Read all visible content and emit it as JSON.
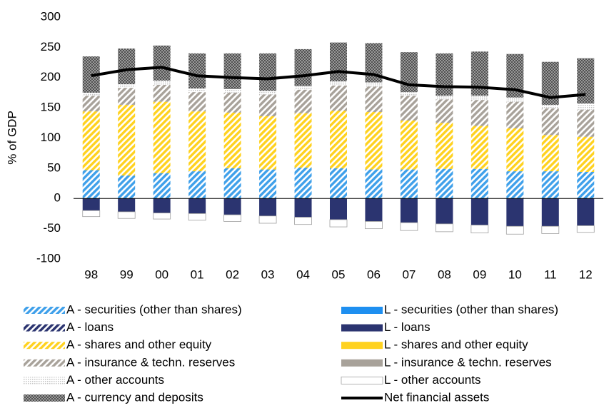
{
  "chart_data": {
    "type": "bar",
    "y_label": "% of GDP",
    "categories": [
      "98",
      "99",
      "00",
      "01",
      "02",
      "03",
      "04",
      "05",
      "06",
      "07",
      "08",
      "09",
      "10",
      "11",
      "12"
    ],
    "ylim": [
      -100,
      300
    ],
    "yticks": [
      -100,
      -50,
      0,
      50,
      100,
      150,
      200,
      250,
      300
    ],
    "series": [
      {
        "name": "A - securities (other than shares)",
        "color": "#3fa0ea",
        "pattern": "stripes",
        "values": [
          47,
          38,
          42,
          45,
          50,
          48,
          51,
          50,
          48,
          48,
          49,
          49,
          45,
          45,
          44
        ]
      },
      {
        "name": "A - loans",
        "color": "#2b3470",
        "pattern": "stripes",
        "values": [
          0,
          0,
          0,
          0,
          0,
          0,
          0,
          0,
          0,
          0,
          0,
          0,
          0,
          0,
          0
        ]
      },
      {
        "name": "A - shares and other equity",
        "color": "#ffd21f",
        "pattern": "stripes",
        "values": [
          97,
          117,
          118,
          99,
          92,
          88,
          90,
          95,
          95,
          81,
          76,
          71,
          71,
          60,
          58
        ]
      },
      {
        "name": "A - insurance & techn. reserves",
        "color": "#a8a29a",
        "pattern": "stripes",
        "values": [
          26,
          28,
          28,
          32,
          33,
          36,
          39,
          42,
          42,
          41,
          39,
          43,
          44,
          44,
          45
        ]
      },
      {
        "name": "A - other accounts",
        "color": "#c4c4c4",
        "pattern": "dots",
        "values": [
          5,
          6,
          7,
          6,
          6,
          6,
          6,
          7,
          7,
          6,
          6,
          7,
          7,
          6,
          10
        ]
      },
      {
        "name": "A - currency and deposits",
        "color": "#505050",
        "pattern": "check",
        "values": [
          60,
          59,
          58,
          58,
          59,
          62,
          61,
          64,
          65,
          66,
          70,
          73,
          72,
          71,
          75
        ]
      },
      {
        "name": "L - securities (other than shares)",
        "color": "#1e8ff0",
        "pattern": "solid",
        "values": [
          0,
          0,
          0,
          0,
          0,
          0,
          0,
          0,
          0,
          0,
          0,
          0,
          0,
          0,
          0
        ]
      },
      {
        "name": "L - loans",
        "color": "#2b3470",
        "pattern": "solid",
        "values": [
          -20,
          -22,
          -24,
          -25,
          -27,
          -29,
          -31,
          -35,
          -38,
          -40,
          -42,
          -44,
          -46,
          -46,
          -45
        ]
      },
      {
        "name": "L - shares and other equity",
        "color": "#ffd21f",
        "pattern": "solid",
        "values": [
          0,
          0,
          0,
          0,
          0,
          0,
          0,
          0,
          0,
          0,
          0,
          0,
          0,
          0,
          0
        ]
      },
      {
        "name": "L - insurance & techn. reserves",
        "color": "#a8a29a",
        "pattern": "solid",
        "values": [
          0,
          0,
          0,
          0,
          0,
          0,
          0,
          0,
          0,
          0,
          0,
          0,
          0,
          0,
          0
        ]
      },
      {
        "name": "L - other accounts",
        "color": "#ffffff",
        "pattern": "solid",
        "values": [
          -10,
          -11,
          -10,
          -11,
          -11,
          -12,
          -12,
          -12,
          -12,
          -13,
          -13,
          -13,
          -13,
          -12,
          -11
        ]
      },
      {
        "name": "Net financial assets",
        "color": "#000000",
        "type": "line",
        "values": [
          203,
          213,
          217,
          203,
          200,
          198,
          203,
          210,
          205,
          188,
          185,
          184,
          180,
          167,
          172
        ]
      }
    ]
  }
}
